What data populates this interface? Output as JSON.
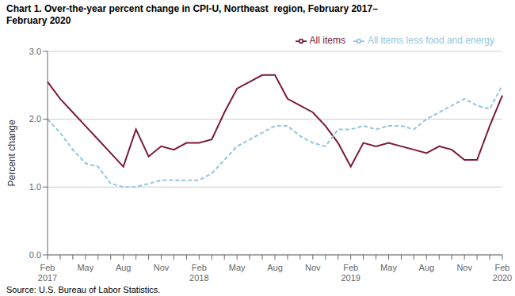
{
  "chart_data": {
    "type": "line",
    "title": "Chart 1. Over-the-year percent change in CPI-U, Northeast  region, February 2017–\nFebruary 2020",
    "ylabel": "Percent change",
    "annotations": [
      "Source: U.S. Bureau of Labor Statistics."
    ],
    "categories": [
      "Feb\n2017",
      null,
      null,
      "May",
      null,
      null,
      "Aug",
      null,
      null,
      "Nov",
      null,
      null,
      "Feb\n2018",
      null,
      null,
      "May",
      null,
      null,
      "Aug",
      null,
      null,
      "Nov",
      null,
      null,
      "Feb\n2019",
      null,
      null,
      "May",
      null,
      null,
      "Aug",
      null,
      null,
      "Nov",
      null,
      null,
      "Feb\n2020"
    ],
    "series": [
      {
        "name": "All items",
        "color": "#7B1A3A",
        "line_style": "solid",
        "values": [
          2.55,
          2.3,
          2.1,
          1.9,
          1.7,
          1.5,
          1.3,
          1.85,
          1.45,
          1.6,
          1.55,
          1.65,
          1.65,
          1.7,
          2.1,
          2.45,
          2.55,
          2.65,
          2.65,
          2.3,
          2.2,
          2.1,
          1.9,
          1.65,
          1.3,
          1.65,
          1.6,
          1.65,
          1.6,
          1.55,
          1.5,
          1.6,
          1.55,
          1.4,
          1.4,
          1.9,
          2.35
        ]
      },
      {
        "name": "All items less food and energy",
        "color": "#92C5DE",
        "line_style": "dashed",
        "values": [
          2.0,
          1.8,
          1.55,
          1.35,
          1.3,
          1.05,
          1.0,
          1.0,
          1.05,
          1.1,
          1.1,
          1.1,
          1.1,
          1.2,
          1.4,
          1.6,
          1.7,
          1.8,
          1.9,
          1.9,
          1.75,
          1.65,
          1.6,
          1.85,
          1.85,
          1.9,
          1.85,
          1.9,
          1.9,
          1.85,
          2.0,
          2.1,
          2.2,
          2.3,
          2.2,
          2.15,
          2.5
        ]
      }
    ],
    "ylim": [
      0.0,
      3.0
    ],
    "yticks": [
      {
        "value": 0.0,
        "label": "0.0"
      },
      {
        "value": 1.0,
        "label": "1.0"
      },
      {
        "value": 2.0,
        "label": "2.0"
      },
      {
        "value": 3.0,
        "label": "3.0"
      }
    ],
    "grid": true,
    "legend": "upper right"
  }
}
